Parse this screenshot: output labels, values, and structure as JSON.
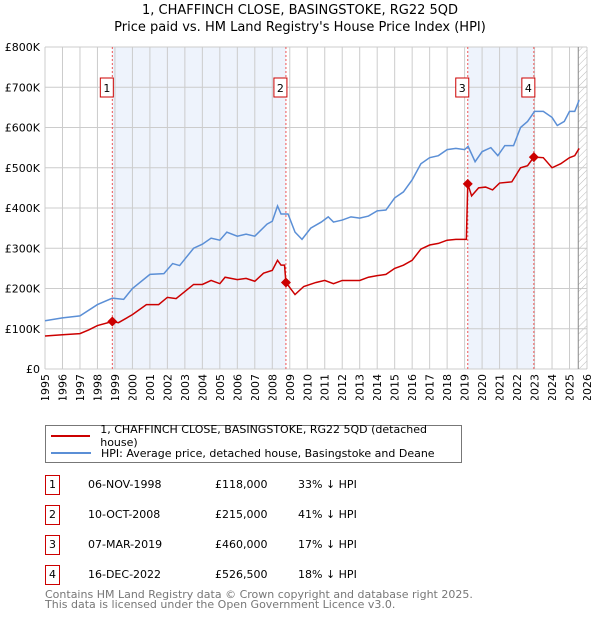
{
  "chart_data": {
    "type": "line",
    "title": "1, CHAFFINCH CLOSE, BASINGSTOKE, RG22 5QD",
    "subtitle": "Price paid vs. HM Land Registry's House Price Index (HPI)",
    "xlim": [
      1995,
      2026
    ],
    "ylim": [
      0,
      800000
    ],
    "x_ticks": [
      "1995",
      "1996",
      "1997",
      "1998",
      "1999",
      "2000",
      "2001",
      "2002",
      "2003",
      "2004",
      "2005",
      "2006",
      "2007",
      "2008",
      "2009",
      "2010",
      "2011",
      "2012",
      "2013",
      "2014",
      "2015",
      "2016",
      "2017",
      "2018",
      "2019",
      "2020",
      "2021",
      "2022",
      "2023",
      "2024",
      "2025",
      "2026"
    ],
    "y_ticks": [
      {
        "v": 0,
        "l": "£0"
      },
      {
        "v": 100000,
        "l": "£100K"
      },
      {
        "v": 200000,
        "l": "£200K"
      },
      {
        "v": 300000,
        "l": "£300K"
      },
      {
        "v": 400000,
        "l": "£400K"
      },
      {
        "v": 500000,
        "l": "£500K"
      },
      {
        "v": 600000,
        "l": "£600K"
      },
      {
        "v": 700000,
        "l": "£700K"
      },
      {
        "v": 800000,
        "l": "£800K"
      }
    ],
    "grid": true,
    "shaded_ranges": [
      [
        1998.85,
        2008.78
      ],
      [
        2019.18,
        2022.96
      ]
    ],
    "hatched_from": 2025.5,
    "series": [
      {
        "name": "1, CHAFFINCH CLOSE, BASINGSTOKE, RG22 5QD (detached house)",
        "color": "#cc0000",
        "x": [
          1995,
          1996,
          1997,
          1997.5,
          1998,
          1998.85,
          1999.2,
          2000,
          2000.8,
          2001.5,
          2002,
          2002.5,
          2003.5,
          2004,
          2004.5,
          2005,
          2005.3,
          2006,
          2006.5,
          2007,
          2007.5,
          2008,
          2008.3,
          2008.5,
          2008.7,
          2008.78,
          2009.3,
          2009.8,
          2010.5,
          2011,
          2011.5,
          2012,
          2013,
          2013.5,
          2014,
          2014.5,
          2015,
          2015.5,
          2016,
          2016.5,
          2017,
          2017.5,
          2018,
          2018.5,
          2019.1,
          2019.18,
          2019.4,
          2019.8,
          2020.2,
          2020.6,
          2021,
          2021.7,
          2022.2,
          2022.6,
          2022.96,
          2023.5,
          2024,
          2024.5,
          2025,
          2025.3,
          2025.55
        ],
        "y": [
          82,
          85,
          88,
          97,
          108,
          118,
          115,
          135,
          160,
          160,
          178,
          175,
          210,
          210,
          220,
          212,
          228,
          222,
          225,
          218,
          238,
          245,
          270,
          258,
          258,
          215,
          185,
          205,
          215,
          220,
          212,
          220,
          220,
          228,
          232,
          235,
          250,
          258,
          270,
          298,
          308,
          312,
          320,
          322,
          322,
          460,
          430,
          450,
          452,
          445,
          462,
          465,
          500,
          505,
          526.5,
          525,
          500,
          510,
          525,
          530,
          548
        ]
      },
      {
        "name": "HPI: Average price, detached house, Basingstoke and Deane",
        "color": "#5b8fd6",
        "x": [
          1995,
          1996,
          1997,
          1998,
          1998.85,
          1999.5,
          2000,
          2001,
          2001.8,
          2002.3,
          2002.7,
          2003.5,
          2004,
          2004.5,
          2005,
          2005.4,
          2006,
          2006.5,
          2007,
          2007.7,
          2008,
          2008.3,
          2008.5,
          2008.9,
          2009.3,
          2009.7,
          2010.2,
          2010.8,
          2011.2,
          2011.5,
          2012,
          2012.5,
          2013,
          2013.5,
          2014,
          2014.5,
          2015,
          2015.5,
          2016,
          2016.5,
          2017,
          2017.5,
          2018,
          2018.5,
          2019,
          2019.2,
          2019.6,
          2020,
          2020.5,
          2020.9,
          2021.3,
          2021.8,
          2022.2,
          2022.6,
          2023,
          2023.5,
          2024,
          2024.3,
          2024.7,
          2025,
          2025.3,
          2025.55
        ],
        "y": [
          120,
          127,
          132,
          160,
          176,
          173,
          200,
          235,
          237,
          262,
          257,
          300,
          310,
          325,
          320,
          340,
          330,
          335,
          330,
          360,
          367,
          405,
          385,
          385,
          340,
          322,
          350,
          365,
          378,
          365,
          370,
          378,
          375,
          380,
          393,
          395,
          425,
          440,
          470,
          510,
          525,
          530,
          545,
          548,
          545,
          553,
          515,
          540,
          550,
          530,
          555,
          555,
          600,
          615,
          640,
          640,
          625,
          605,
          615,
          640,
          640,
          668
        ]
      }
    ],
    "y_unit": "thousands GBP",
    "markers": [
      {
        "label": "1",
        "x": 1998.85,
        "y": 118
      },
      {
        "label": "2",
        "x": 2008.78,
        "y": 215
      },
      {
        "label": "3",
        "x": 2019.18,
        "y": 460
      },
      {
        "label": "4",
        "x": 2022.96,
        "y": 526.5
      }
    ]
  },
  "legend": {
    "items": [
      "1, CHAFFINCH CLOSE, BASINGSTOKE, RG22 5QD (detached house)",
      "HPI: Average price, detached house, Basingstoke and Deane"
    ]
  },
  "transactions": [
    {
      "num": "1",
      "date": "06-NOV-1998",
      "price": "£118,000",
      "hpi": "33% ↓ HPI"
    },
    {
      "num": "2",
      "date": "10-OCT-2008",
      "price": "£215,000",
      "hpi": "41% ↓ HPI"
    },
    {
      "num": "3",
      "date": "07-MAR-2019",
      "price": "£460,000",
      "hpi": "17% ↓ HPI"
    },
    {
      "num": "4",
      "date": "16-DEC-2022",
      "price": "£526,500",
      "hpi": "18% ↓ HPI"
    }
  ],
  "footer": {
    "line1": "Contains HM Land Registry data © Crown copyright and database right 2025.",
    "line2": "This data is licensed under the Open Government Licence v3.0."
  }
}
